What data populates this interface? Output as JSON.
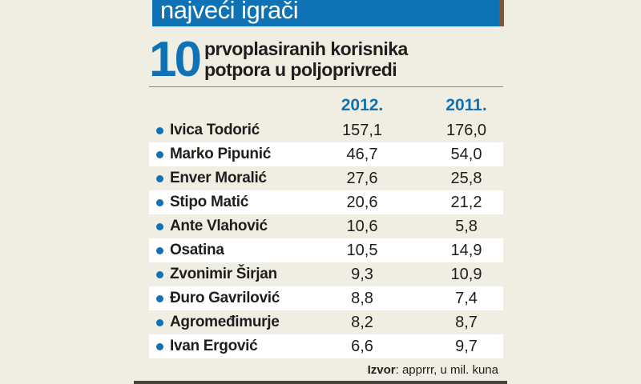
{
  "colors": {
    "background": "#f0eee3",
    "accent_blue": "#0f72b4",
    "row_stripe": "#ffffff",
    "text_dark": "#1e1e1c",
    "rule_gray": "#8a8a85",
    "bottom_bar": "#45443e",
    "bar_edge_brown": "#7c5a3a"
  },
  "header": {
    "title": "najveći igrači",
    "big_number": "10",
    "subtitle_line1": "prvoplasiranih korisnika",
    "subtitle_line2": "potpora u poljoprivredi"
  },
  "table": {
    "columns": [
      "2012.",
      "2011."
    ],
    "rows": [
      {
        "name": "Ivica Todorić",
        "v2012": "157,1",
        "v2011": "176,0"
      },
      {
        "name": "Marko Pipunić",
        "v2012": "46,7",
        "v2011": "54,0"
      },
      {
        "name": "Enver Moralić",
        "v2012": "27,6",
        "v2011": "25,8"
      },
      {
        "name": "Stipo Matić",
        "v2012": "20,6",
        "v2011": "21,2"
      },
      {
        "name": "Ante Vlahović",
        "v2012": "10,6",
        "v2011": "5,8"
      },
      {
        "name": "Osatina",
        "v2012": "10,5",
        "v2011": "14,9"
      },
      {
        "name": "Zvonimir Širjan",
        "v2012": "9,3",
        "v2011": "10,9"
      },
      {
        "name": "Đuro Gavrilović",
        "v2012": "8,8",
        "v2011": "7,4"
      },
      {
        "name": "Agromeđimurje",
        "v2012": "8,2",
        "v2011": "8,7"
      },
      {
        "name": "Ivan Ergović",
        "v2012": "6,6",
        "v2011": "9,7"
      }
    ]
  },
  "footer": {
    "source_label": "Izvor",
    "source_rest": ": apprrr, u mil. kuna"
  },
  "chart_data": {
    "type": "table",
    "title": "najveći igrači — 10 prvoplasiranih korisnika potpora u poljoprivredi",
    "unit": "mil. kuna",
    "source": "apprrr",
    "categories": [
      "Ivica Todorić",
      "Marko Pipunić",
      "Enver Moralić",
      "Stipo Matić",
      "Ante Vlahović",
      "Osatina",
      "Zvonimir Širjan",
      "Đuro Gavrilović",
      "Agromeđimurje",
      "Ivan Ergović"
    ],
    "series": [
      {
        "name": "2012.",
        "values": [
          157.1,
          46.7,
          27.6,
          20.6,
          10.6,
          10.5,
          9.3,
          8.8,
          8.2,
          6.6
        ]
      },
      {
        "name": "2011.",
        "values": [
          176.0,
          54.0,
          25.8,
          21.2,
          5.8,
          14.9,
          10.9,
          7.4,
          8.7,
          9.7
        ]
      }
    ]
  }
}
